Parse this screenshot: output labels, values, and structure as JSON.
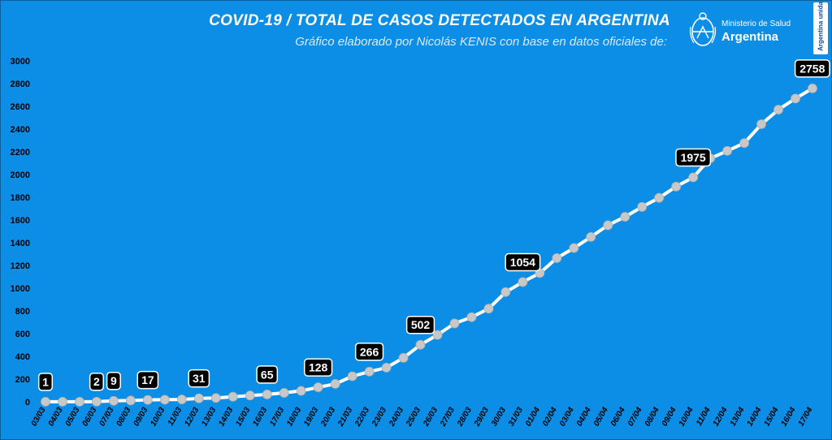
{
  "title": "COVID-19  /  TOTAL DE CASOS DETECTADOS EN ARGENTINA",
  "subtitle": "Gráfico elaborado por Nicolás KENIS con base en datos oficiales de:",
  "logo": {
    "ministry": "Ministerio de Salud",
    "country": "Argentina",
    "icon": "argentina-seal-icon"
  },
  "badge": {
    "text": "Argentina unida"
  },
  "colors": {
    "background": "#0d8ee6",
    "line": "#ffffff",
    "marker": "#c8c8c8",
    "label_bg": "#000000",
    "label_text": "#ffffff",
    "axis_text": "#000000"
  },
  "chart_data": {
    "type": "line",
    "title": "COVID-19  /  TOTAL DE CASOS DETECTADOS EN ARGENTINA",
    "xlabel": "",
    "ylabel": "",
    "ylim": [
      0,
      3000
    ],
    "yticks": [
      "0",
      "200",
      "400",
      "600",
      "800",
      "1000",
      "1200",
      "1400",
      "1600",
      "1800",
      "2000",
      "2200",
      "2400",
      "2600",
      "2800",
      "3000"
    ],
    "grid": false,
    "categories": [
      "03/03",
      "04/03",
      "05/03",
      "06/03",
      "07/03",
      "08/03",
      "09/03",
      "10/03",
      "11/03",
      "12/03",
      "13/03",
      "14/03",
      "15/03",
      "16/03",
      "17/03",
      "18/03",
      "19/03",
      "20/03",
      "21/03",
      "22/03",
      "23/03",
      "24/03",
      "25/03",
      "26/03",
      "27/03",
      "28/03",
      "29/03",
      "30/03",
      "31/03",
      "01/04",
      "02/04",
      "03/04",
      "04/04",
      "05/04",
      "06/04",
      "07/04",
      "08/04",
      "09/04",
      "10/04",
      "11/04",
      "12/04",
      "13/04",
      "14/04",
      "15/04",
      "16/04",
      "17/04"
    ],
    "series": [
      {
        "values": [
          1,
          1,
          1,
          2,
          9,
          12,
          17,
          19,
          21,
          31,
          34,
          45,
          56,
          65,
          79,
          97,
          128,
          158,
          225,
          266,
          301,
          387,
          502,
          589,
          690,
          745,
          820,
          966,
          1054,
          1133,
          1265,
          1353,
          1451,
          1554,
          1628,
          1715,
          1795,
          1894,
          1975,
          2142,
          2208,
          2277,
          2443,
          2571,
          2669,
          2758
        ]
      }
    ],
    "data_labels": [
      {
        "index": 0,
        "text": "1"
      },
      {
        "index": 3,
        "text": "2"
      },
      {
        "index": 4,
        "text": "9"
      },
      {
        "index": 6,
        "text": "17"
      },
      {
        "index": 9,
        "text": "31"
      },
      {
        "index": 13,
        "text": "65"
      },
      {
        "index": 16,
        "text": "128"
      },
      {
        "index": 19,
        "text": "266"
      },
      {
        "index": 22,
        "text": "502"
      },
      {
        "index": 28,
        "text": "1054"
      },
      {
        "index": 38,
        "text": "1975"
      },
      {
        "index": 45,
        "text": "2758"
      }
    ]
  }
}
